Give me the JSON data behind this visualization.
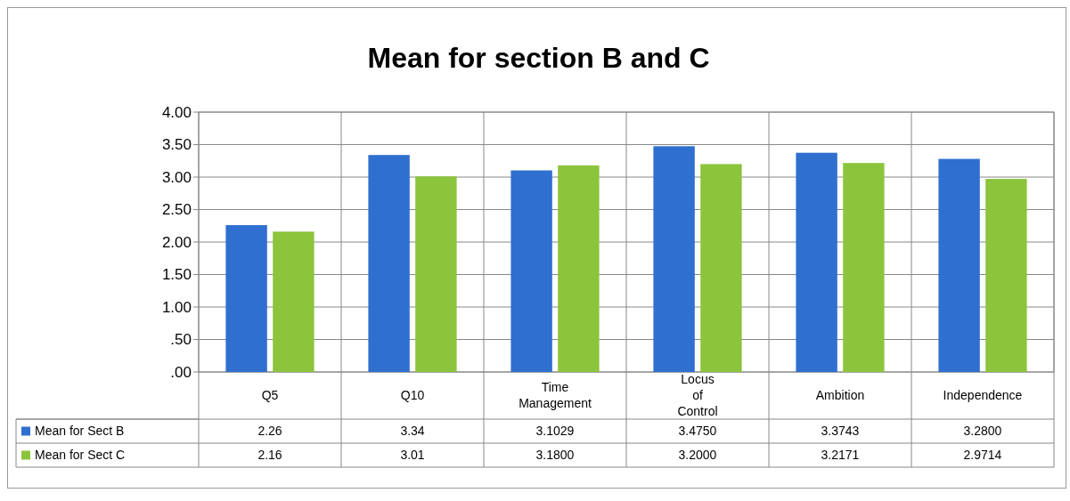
{
  "chart_data": {
    "type": "bar",
    "title": "Mean for section B and C",
    "categories": [
      "Q5",
      "Q10",
      "Time Management",
      "Locus of Control",
      "Ambition",
      "Independence"
    ],
    "series": [
      {
        "name": "Mean for Sect B",
        "color": "#2f6fcf",
        "values": [
          2.26,
          3.34,
          3.1029,
          3.475,
          3.3743,
          3.28
        ],
        "value_labels": [
          "2.26",
          "3.34",
          "3.1029",
          "3.4750",
          "3.3743",
          "3.2800"
        ]
      },
      {
        "name": "Mean for Sect C",
        "color": "#8cc43c",
        "values": [
          2.16,
          3.01,
          3.18,
          3.2,
          3.2171,
          2.9714
        ],
        "value_labels": [
          "2.16",
          "3.01",
          "3.1800",
          "3.2000",
          "3.2171",
          "2.9714"
        ]
      }
    ],
    "ylim": [
      0,
      4
    ],
    "yticks": [
      {
        "value": 0,
        "label": ".00"
      },
      {
        "value": 0.5,
        "label": ".50"
      },
      {
        "value": 1,
        "label": "1.00"
      },
      {
        "value": 1.5,
        "label": "1.50"
      },
      {
        "value": 2,
        "label": "2.00"
      },
      {
        "value": 2.5,
        "label": "2.50"
      },
      {
        "value": 3,
        "label": "3.00"
      },
      {
        "value": 3.5,
        "label": "3.50"
      },
      {
        "value": 4,
        "label": "4.00"
      }
    ],
    "grid": "y",
    "legend": "left"
  }
}
